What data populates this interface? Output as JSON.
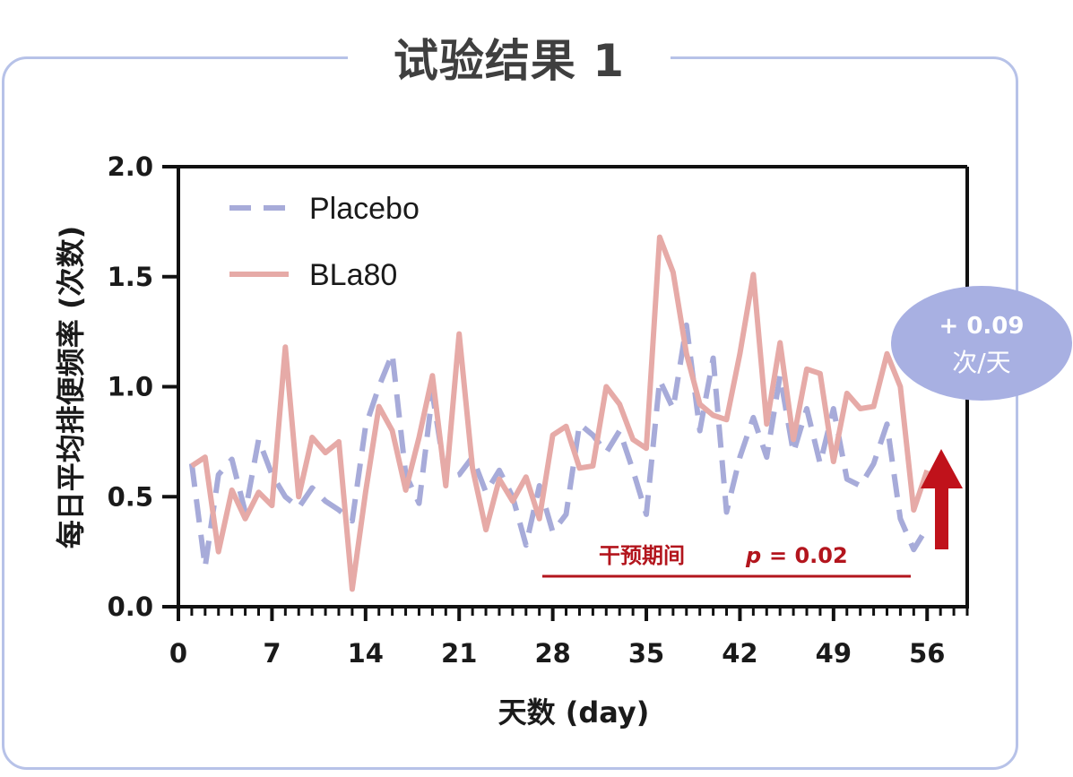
{
  "page": {
    "title": "试验结果 1"
  },
  "chart_data": {
    "type": "line",
    "xlabel": "天数 (day)",
    "ylabel": "每日平均排便频率 (次数)",
    "xlim": [
      0,
      59
    ],
    "ylim": [
      0,
      2.0
    ],
    "xticks": [
      0,
      7,
      14,
      21,
      28,
      35,
      42,
      49,
      56
    ],
    "yticks": [
      0.0,
      0.5,
      1.0,
      1.5,
      2.0
    ],
    "ytick_labels": [
      "0.0",
      "0.5",
      "1.0",
      "1.5",
      "2.0"
    ],
    "legend_position": "top-left",
    "grid": false,
    "x": [
      1,
      2,
      3,
      4,
      5,
      6,
      7,
      8,
      9,
      10,
      11,
      12,
      13,
      14,
      15,
      16,
      17,
      18,
      19,
      20,
      21,
      22,
      23,
      24,
      25,
      26,
      27,
      28,
      29,
      30,
      31,
      32,
      33,
      34,
      35,
      36,
      37,
      38,
      39,
      40,
      41,
      42,
      43,
      44,
      45,
      46,
      47,
      48,
      49,
      50,
      51,
      52,
      53,
      54,
      55,
      56
    ],
    "series": [
      {
        "name": "Placebo",
        "color": "#a7abd9",
        "dash": true,
        "values": [
          0.65,
          0.18,
          0.6,
          0.67,
          0.43,
          0.76,
          0.6,
          0.5,
          0.45,
          0.54,
          0.48,
          0.44,
          0.39,
          0.82,
          1.0,
          1.15,
          0.6,
          0.47,
          0.97,
          0.58,
          0.6,
          0.68,
          0.52,
          0.62,
          0.5,
          0.28,
          0.55,
          0.34,
          0.42,
          0.83,
          0.78,
          0.7,
          0.8,
          0.62,
          0.42,
          1.03,
          0.9,
          1.28,
          0.8,
          1.13,
          0.43,
          0.68,
          0.86,
          0.68,
          1.05,
          0.7,
          0.9,
          0.65,
          0.9,
          0.58,
          0.55,
          0.65,
          0.83,
          0.4,
          0.26,
          0.36
        ]
      },
      {
        "name": "BLa80",
        "color": "#e6aaa7",
        "dash": false,
        "values": [
          0.64,
          0.68,
          0.25,
          0.53,
          0.4,
          0.52,
          0.46,
          1.18,
          0.5,
          0.77,
          0.7,
          0.75,
          0.08,
          0.52,
          0.91,
          0.8,
          0.53,
          0.77,
          1.05,
          0.55,
          1.24,
          0.63,
          0.35,
          0.58,
          0.48,
          0.59,
          0.4,
          0.78,
          0.82,
          0.63,
          0.64,
          1.0,
          0.92,
          0.76,
          0.72,
          1.68,
          1.52,
          1.15,
          0.92,
          0.87,
          0.85,
          1.15,
          1.51,
          0.83,
          1.2,
          0.76,
          1.08,
          1.06,
          0.66,
          0.97,
          0.9,
          0.91,
          1.15,
          1.0,
          0.44,
          0.62
        ]
      }
    ],
    "annotations": {
      "intervention_label": "干预期间",
      "p_label": "p",
      "p_value_text": "= 0.02",
      "intervention_range": [
        28,
        56
      ],
      "effect_line1": "+ 0.09",
      "effect_line2": "次/天",
      "arrow_color": "#c0121b",
      "bubble_color": "#a8b0e2",
      "intervention_color": "#b3151d"
    }
  }
}
